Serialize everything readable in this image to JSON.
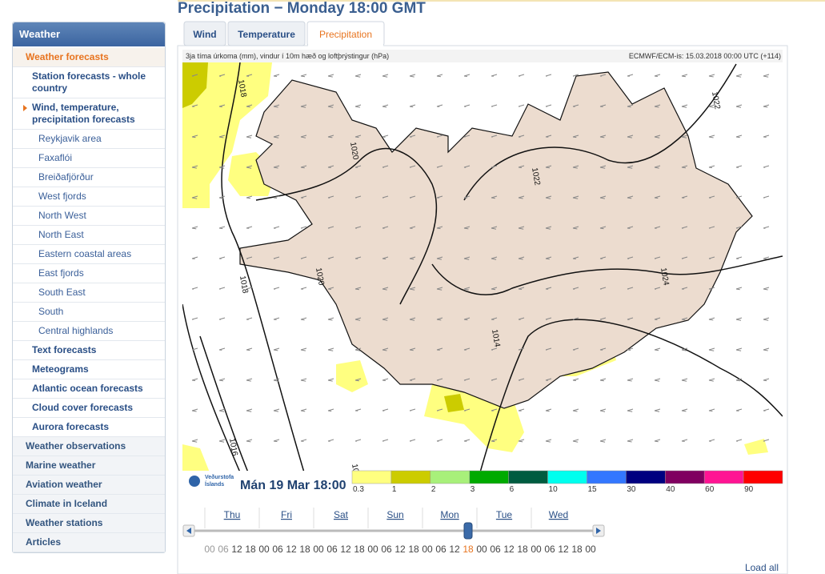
{
  "sidebar": {
    "title": "Weather",
    "menu": [
      {
        "label": "Weather forecasts",
        "current": true,
        "items": [
          {
            "label": "Station forecasts - whole country"
          },
          {
            "label": "Wind, temperature, precipitation forecasts",
            "current": true,
            "items": [
              {
                "label": "Reykjavik area"
              },
              {
                "label": "Faxaflói"
              },
              {
                "label": "Breiðafjörður"
              },
              {
                "label": "West fjords"
              },
              {
                "label": "North West"
              },
              {
                "label": "North East"
              },
              {
                "label": "Eastern coastal areas"
              },
              {
                "label": "East fjords"
              },
              {
                "label": "South East"
              },
              {
                "label": "South"
              },
              {
                "label": "Central highlands"
              }
            ]
          },
          {
            "label": "Text forecasts"
          },
          {
            "label": "Meteograms"
          },
          {
            "label": "Atlantic ocean forecasts"
          },
          {
            "label": "Cloud cover forecasts"
          },
          {
            "label": "Aurora forecasts"
          }
        ]
      },
      {
        "label": "Weather observations"
      },
      {
        "label": "Marine weather"
      },
      {
        "label": "Aviation weather"
      },
      {
        "label": "Climate in Iceland"
      },
      {
        "label": "Weather stations"
      },
      {
        "label": "Articles"
      }
    ]
  },
  "title": "Precipitation − Monday 18:00 GMT",
  "tabs": [
    "Wind",
    "Temperature",
    "Precipitation"
  ],
  "active_tab": 2,
  "map": {
    "caption": "3ja tíma úrkoma (mm), vindur í 10m hæð og loftþrýstingur (hPa)",
    "source": "ECMWF/ECM-is: 15.03.2018 00:00 UTC (+114)",
    "isobar_labels": [
      "1018",
      "1020",
      "1022",
      "1022",
      "1020",
      "1018",
      "1016",
      "1024",
      "1014",
      "1016"
    ],
    "logo": [
      "Veðurstofa",
      "Íslands"
    ],
    "time": "Mán 19 Mar 18:00",
    "legend": [
      {
        "label": "0.3",
        "color": "#ffff80"
      },
      {
        "label": "1",
        "color": "#cccc00"
      },
      {
        "label": "2",
        "color": "#a8f07a"
      },
      {
        "label": "3",
        "color": "#00aa00"
      },
      {
        "label": "6",
        "color": "#005c40"
      },
      {
        "label": "10",
        "color": "#00ffee"
      },
      {
        "label": "15",
        "color": "#3377ff"
      },
      {
        "label": "30",
        "color": "#000080"
      },
      {
        "label": "40",
        "color": "#800060"
      },
      {
        "label": "60",
        "color": "#ff1493"
      },
      {
        "label": "90",
        "color": "#ff0000"
      }
    ]
  },
  "timeline": {
    "days": [
      "Thu",
      "Fri",
      "Sat",
      "Sun",
      "Mon",
      "Tue",
      "Wed"
    ],
    "hours": [
      "00",
      "06",
      "12",
      "18",
      "00",
      "06",
      "12",
      "18",
      "00",
      "06",
      "12",
      "18",
      "00",
      "06",
      "12",
      "18",
      "00",
      "06",
      "12",
      "18",
      "00",
      "06",
      "12",
      "18",
      "00",
      "06",
      "12",
      "18",
      "00"
    ],
    "past_hours": 2,
    "selected_hour": 19,
    "load_all": "Load all"
  }
}
